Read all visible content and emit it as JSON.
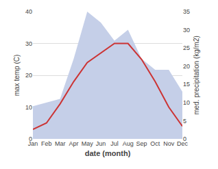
{
  "chart_data": {
    "type": "line",
    "xlabel": "date (month)",
    "ylabel": "max temp (C)",
    "y2label": "med. precipitation (kg/m2)",
    "categories": [
      "Jan",
      "Feb",
      "Mar",
      "Apr",
      "May",
      "Jun",
      "Jul",
      "Aug",
      "Sep",
      "Oct",
      "Nov",
      "Dec"
    ],
    "series": [
      {
        "type": "area",
        "axis": "y2",
        "color": "#c5cfe8",
        "values": [
          9,
          10,
          11,
          22,
          35,
          32,
          27,
          30,
          22,
          19,
          19,
          13
        ]
      },
      {
        "type": "line",
        "color": "#cc3333",
        "values": [
          3,
          5,
          11,
          18,
          24,
          27,
          30,
          30,
          25,
          18,
          10,
          4
        ]
      }
    ],
    "ylim": [
      0,
      40
    ],
    "yticks": [
      0,
      10,
      20,
      30,
      40
    ],
    "y2lim": [
      0,
      35
    ],
    "y2ticks": [
      0,
      5,
      10,
      15,
      20,
      25,
      30,
      35
    ],
    "grid": true
  }
}
